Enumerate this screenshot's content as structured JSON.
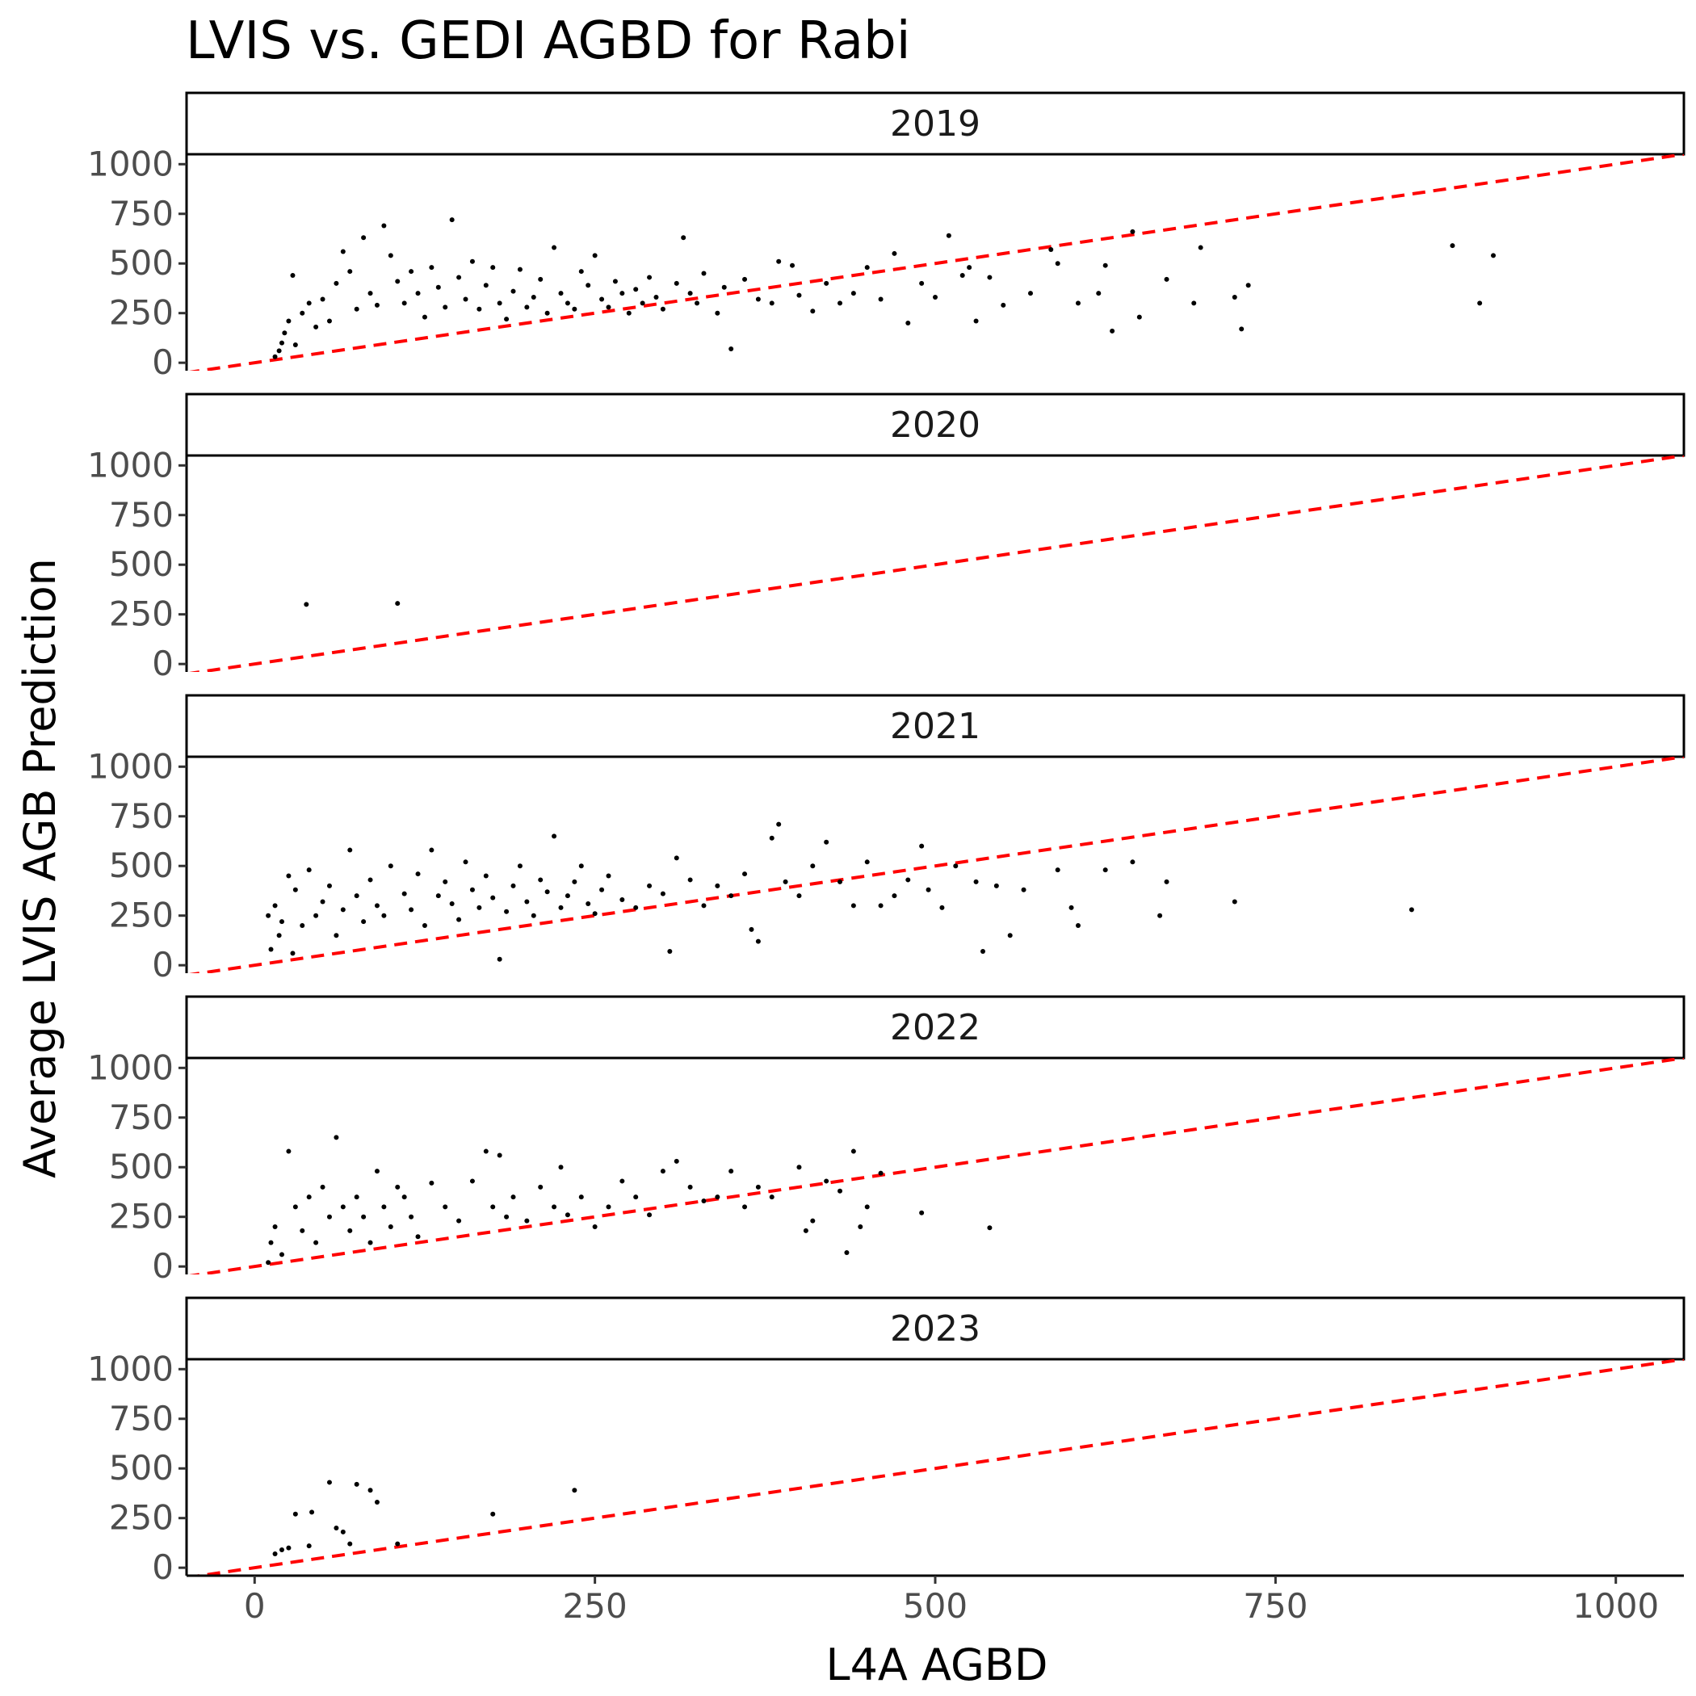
{
  "chart_data": {
    "type": "scatter",
    "title": "LVIS vs. GEDI AGBD for Rabi",
    "xlabel": "L4A AGBD",
    "ylabel": "Average LVIS AGB Prediction",
    "xlim": [
      -50,
      1050
    ],
    "ylim": [
      -40,
      1050
    ],
    "x_ticks": [
      0,
      250,
      500,
      750,
      1000
    ],
    "y_ticks": [
      0,
      250,
      500,
      750,
      1000
    ],
    "grid": false,
    "reference_line": {
      "slope": 1,
      "intercept": 0,
      "style": "dashed",
      "color": "#ff0000"
    },
    "point_color": "#000000",
    "panels": [
      {
        "label": "2019",
        "points": [
          [
            15,
            30
          ],
          [
            18,
            60
          ],
          [
            20,
            100
          ],
          [
            22,
            150
          ],
          [
            25,
            210
          ],
          [
            28,
            440
          ],
          [
            30,
            90
          ],
          [
            35,
            250
          ],
          [
            40,
            300
          ],
          [
            45,
            180
          ],
          [
            50,
            320
          ],
          [
            55,
            210
          ],
          [
            60,
            400
          ],
          [
            65,
            560
          ],
          [
            70,
            460
          ],
          [
            75,
            270
          ],
          [
            80,
            630
          ],
          [
            85,
            350
          ],
          [
            90,
            290
          ],
          [
            95,
            690
          ],
          [
            100,
            540
          ],
          [
            105,
            410
          ],
          [
            110,
            300
          ],
          [
            115,
            460
          ],
          [
            120,
            350
          ],
          [
            125,
            230
          ],
          [
            130,
            480
          ],
          [
            135,
            380
          ],
          [
            140,
            280
          ],
          [
            145,
            720
          ],
          [
            150,
            430
          ],
          [
            155,
            320
          ],
          [
            160,
            510
          ],
          [
            165,
            270
          ],
          [
            170,
            390
          ],
          [
            175,
            480
          ],
          [
            180,
            300
          ],
          [
            185,
            220
          ],
          [
            190,
            360
          ],
          [
            195,
            470
          ],
          [
            200,
            280
          ],
          [
            205,
            330
          ],
          [
            210,
            420
          ],
          [
            215,
            250
          ],
          [
            220,
            580
          ],
          [
            225,
            350
          ],
          [
            230,
            300
          ],
          [
            235,
            270
          ],
          [
            240,
            460
          ],
          [
            245,
            390
          ],
          [
            250,
            540
          ],
          [
            255,
            320
          ],
          [
            260,
            280
          ],
          [
            265,
            410
          ],
          [
            270,
            350
          ],
          [
            275,
            250
          ],
          [
            280,
            370
          ],
          [
            285,
            300
          ],
          [
            290,
            430
          ],
          [
            295,
            330
          ],
          [
            300,
            270
          ],
          [
            310,
            400
          ],
          [
            315,
            630
          ],
          [
            320,
            350
          ],
          [
            325,
            300
          ],
          [
            330,
            450
          ],
          [
            340,
            250
          ],
          [
            345,
            380
          ],
          [
            350,
            70
          ],
          [
            360,
            420
          ],
          [
            370,
            320
          ],
          [
            380,
            300
          ],
          [
            385,
            510
          ],
          [
            395,
            490
          ],
          [
            400,
            340
          ],
          [
            410,
            260
          ],
          [
            420,
            400
          ],
          [
            430,
            300
          ],
          [
            440,
            350
          ],
          [
            450,
            480
          ],
          [
            460,
            320
          ],
          [
            470,
            550
          ],
          [
            480,
            200
          ],
          [
            490,
            400
          ],
          [
            500,
            330
          ],
          [
            510,
            640
          ],
          [
            520,
            440
          ],
          [
            525,
            480
          ],
          [
            530,
            210
          ],
          [
            540,
            430
          ],
          [
            550,
            290
          ],
          [
            570,
            350
          ],
          [
            585,
            570
          ],
          [
            590,
            500
          ],
          [
            605,
            300
          ],
          [
            620,
            350
          ],
          [
            625,
            490
          ],
          [
            630,
            160
          ],
          [
            645,
            660
          ],
          [
            650,
            230
          ],
          [
            670,
            420
          ],
          [
            690,
            300
          ],
          [
            695,
            580
          ],
          [
            720,
            330
          ],
          [
            725,
            170
          ],
          [
            730,
            390
          ],
          [
            880,
            590
          ],
          [
            900,
            300
          ],
          [
            910,
            540
          ]
        ]
      },
      {
        "label": "2020",
        "points": [
          [
            38,
            300
          ],
          [
            105,
            305
          ]
        ]
      },
      {
        "label": "2021",
        "points": [
          [
            10,
            250
          ],
          [
            12,
            80
          ],
          [
            15,
            300
          ],
          [
            18,
            150
          ],
          [
            20,
            220
          ],
          [
            25,
            450
          ],
          [
            28,
            60
          ],
          [
            30,
            380
          ],
          [
            35,
            200
          ],
          [
            40,
            480
          ],
          [
            45,
            250
          ],
          [
            50,
            320
          ],
          [
            55,
            400
          ],
          [
            60,
            150
          ],
          [
            65,
            280
          ],
          [
            70,
            580
          ],
          [
            75,
            350
          ],
          [
            80,
            220
          ],
          [
            85,
            430
          ],
          [
            90,
            300
          ],
          [
            95,
            250
          ],
          [
            100,
            500
          ],
          [
            110,
            360
          ],
          [
            115,
            280
          ],
          [
            120,
            460
          ],
          [
            125,
            200
          ],
          [
            130,
            580
          ],
          [
            135,
            350
          ],
          [
            140,
            420
          ],
          [
            145,
            310
          ],
          [
            150,
            230
          ],
          [
            155,
            520
          ],
          [
            160,
            380
          ],
          [
            165,
            290
          ],
          [
            170,
            450
          ],
          [
            175,
            340
          ],
          [
            180,
            30
          ],
          [
            185,
            270
          ],
          [
            190,
            400
          ],
          [
            195,
            500
          ],
          [
            200,
            320
          ],
          [
            205,
            250
          ],
          [
            210,
            430
          ],
          [
            215,
            370
          ],
          [
            220,
            650
          ],
          [
            225,
            290
          ],
          [
            230,
            350
          ],
          [
            235,
            420
          ],
          [
            240,
            500
          ],
          [
            245,
            310
          ],
          [
            250,
            260
          ],
          [
            255,
            380
          ],
          [
            260,
            450
          ],
          [
            270,
            330
          ],
          [
            280,
            290
          ],
          [
            290,
            400
          ],
          [
            300,
            360
          ],
          [
            305,
            70
          ],
          [
            310,
            540
          ],
          [
            320,
            430
          ],
          [
            330,
            300
          ],
          [
            340,
            400
          ],
          [
            350,
            350
          ],
          [
            360,
            460
          ],
          [
            365,
            180
          ],
          [
            370,
            120
          ],
          [
            380,
            640
          ],
          [
            385,
            710
          ],
          [
            390,
            420
          ],
          [
            400,
            350
          ],
          [
            410,
            500
          ],
          [
            420,
            620
          ],
          [
            430,
            420
          ],
          [
            440,
            300
          ],
          [
            450,
            520
          ],
          [
            460,
            300
          ],
          [
            470,
            350
          ],
          [
            480,
            430
          ],
          [
            490,
            600
          ],
          [
            495,
            380
          ],
          [
            505,
            290
          ],
          [
            515,
            500
          ],
          [
            530,
            420
          ],
          [
            535,
            70
          ],
          [
            545,
            400
          ],
          [
            555,
            150
          ],
          [
            565,
            380
          ],
          [
            590,
            480
          ],
          [
            600,
            290
          ],
          [
            605,
            200
          ],
          [
            625,
            480
          ],
          [
            645,
            520
          ],
          [
            665,
            250
          ],
          [
            670,
            420
          ],
          [
            720,
            320
          ],
          [
            850,
            280
          ]
        ]
      },
      {
        "label": "2022",
        "points": [
          [
            10,
            20
          ],
          [
            12,
            120
          ],
          [
            15,
            200
          ],
          [
            20,
            60
          ],
          [
            25,
            580
          ],
          [
            30,
            300
          ],
          [
            35,
            180
          ],
          [
            40,
            350
          ],
          [
            45,
            120
          ],
          [
            50,
            400
          ],
          [
            55,
            250
          ],
          [
            60,
            650
          ],
          [
            65,
            300
          ],
          [
            70,
            180
          ],
          [
            75,
            350
          ],
          [
            80,
            250
          ],
          [
            85,
            120
          ],
          [
            90,
            480
          ],
          [
            95,
            300
          ],
          [
            100,
            200
          ],
          [
            105,
            400
          ],
          [
            110,
            350
          ],
          [
            115,
            250
          ],
          [
            120,
            150
          ],
          [
            130,
            420
          ],
          [
            140,
            300
          ],
          [
            150,
            230
          ],
          [
            160,
            430
          ],
          [
            170,
            580
          ],
          [
            175,
            300
          ],
          [
            180,
            560
          ],
          [
            185,
            250
          ],
          [
            190,
            350
          ],
          [
            200,
            230
          ],
          [
            210,
            400
          ],
          [
            220,
            300
          ],
          [
            225,
            500
          ],
          [
            230,
            260
          ],
          [
            240,
            350
          ],
          [
            250,
            200
          ],
          [
            260,
            300
          ],
          [
            270,
            430
          ],
          [
            280,
            350
          ],
          [
            290,
            260
          ],
          [
            300,
            480
          ],
          [
            310,
            530
          ],
          [
            320,
            400
          ],
          [
            330,
            330
          ],
          [
            340,
            350
          ],
          [
            350,
            480
          ],
          [
            360,
            300
          ],
          [
            370,
            400
          ],
          [
            380,
            350
          ],
          [
            400,
            500
          ],
          [
            405,
            180
          ],
          [
            410,
            230
          ],
          [
            420,
            430
          ],
          [
            430,
            380
          ],
          [
            435,
            70
          ],
          [
            440,
            580
          ],
          [
            445,
            200
          ],
          [
            450,
            300
          ],
          [
            460,
            470
          ],
          [
            490,
            270
          ],
          [
            540,
            195
          ]
        ]
      },
      {
        "label": "2023",
        "points": [
          [
            15,
            70
          ],
          [
            20,
            90
          ],
          [
            25,
            100
          ],
          [
            30,
            270
          ],
          [
            40,
            110
          ],
          [
            42,
            280
          ],
          [
            55,
            430
          ],
          [
            60,
            200
          ],
          [
            65,
            180
          ],
          [
            70,
            120
          ],
          [
            75,
            420
          ],
          [
            85,
            390
          ],
          [
            90,
            330
          ],
          [
            105,
            120
          ],
          [
            175,
            270
          ],
          [
            235,
            390
          ]
        ]
      }
    ]
  }
}
